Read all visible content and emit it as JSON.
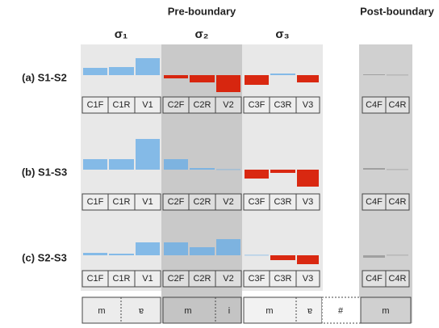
{
  "header": {
    "pre": "Pre-boundary",
    "post": "Post-boundary",
    "syllables": [
      "σ₁",
      "σ₂",
      "σ₃"
    ]
  },
  "colors": {
    "positive": "#6aaee6",
    "negative": "#d81e05",
    "post_boundary": "#9a9a9a"
  },
  "chart_data": [
    {
      "type": "bar",
      "title": "(a) S1-S2",
      "categories": [
        "C1F",
        "C1R",
        "V1",
        "C2F",
        "C2R",
        "V2",
        "C3F",
        "C3R",
        "V3"
      ],
      "values": [
        9,
        10,
        21,
        -4,
        -9,
        -21,
        -12,
        2,
        -9
      ],
      "post_categories": [
        "C4F",
        "C4R"
      ],
      "post_values": [
        1,
        0.5
      ]
    },
    {
      "type": "bar",
      "title": "(b) S1-S3",
      "categories": [
        "C1F",
        "C1R",
        "V1",
        "C2F",
        "C2R",
        "V2",
        "C3F",
        "C3R",
        "V3"
      ],
      "values": [
        13,
        13,
        38,
        13,
        2,
        0.5,
        -11,
        -4,
        -21
      ],
      "post_categories": [
        "C4F",
        "C4R"
      ],
      "post_values": [
        2,
        0.5
      ]
    },
    {
      "type": "bar",
      "title": "(c) S2-S3",
      "categories": [
        "C1F",
        "C1R",
        "V1",
        "C2F",
        "C2R",
        "V2",
        "C3F",
        "C3R",
        "V3"
      ],
      "values": [
        3,
        2,
        16,
        16,
        10,
        20,
        0.5,
        -6,
        -11
      ],
      "post_categories": [
        "C4F",
        "C4R"
      ],
      "post_values": [
        -3,
        0.5
      ]
    }
  ],
  "segments": [
    "m",
    "ɐ",
    "m",
    "i",
    "m",
    "ɐ",
    "#",
    "m"
  ]
}
